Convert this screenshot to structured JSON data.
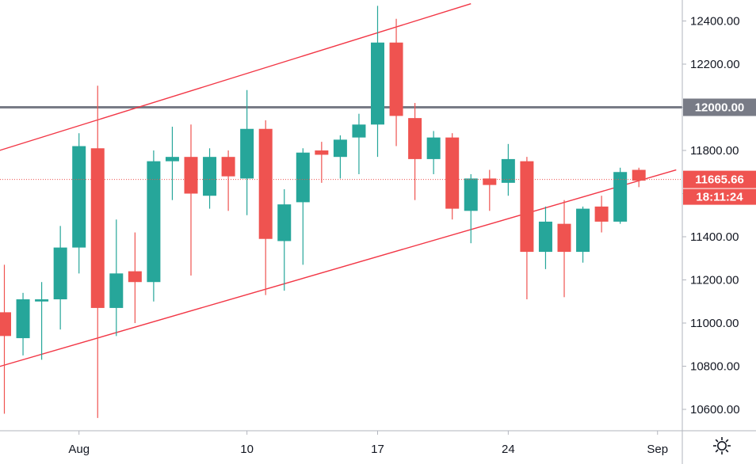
{
  "chart_data": {
    "type": "candlestick",
    "title": "",
    "xlabel": "",
    "ylabel": "",
    "ylim": [
      10500,
      12550
    ],
    "y_ticks": [
      10600,
      10800,
      11000,
      11200,
      11400,
      11600,
      11800,
      12000,
      12200,
      12400
    ],
    "y_tick_labels": [
      "10600.00",
      "10800.00",
      "11000.00",
      "11200.00",
      "11400.00",
      "11600.00",
      "11800.00",
      "12000.00",
      "12200.00",
      "12400.00"
    ],
    "x_tick_labels": [
      {
        "label": "Aug",
        "date": "2020-08-01"
      },
      {
        "label": "10",
        "date": "2020-08-10"
      },
      {
        "label": "17",
        "date": "2020-08-17"
      },
      {
        "label": "24",
        "date": "2020-08-24"
      },
      {
        "label": "Sep",
        "date": "2020-09-01"
      }
    ],
    "grid": true,
    "candles": [
      {
        "date": "2020-07-28",
        "open": 11050,
        "high": 11270,
        "low": 10580,
        "close": 10940
      },
      {
        "date": "2020-07-29",
        "open": 10930,
        "high": 11140,
        "low": 10850,
        "close": 11110
      },
      {
        "date": "2020-07-30",
        "open": 11100,
        "high": 11190,
        "low": 10830,
        "close": 11110
      },
      {
        "date": "2020-07-31",
        "open": 11110,
        "high": 11450,
        "low": 10970,
        "close": 11350
      },
      {
        "date": "2020-08-01",
        "open": 11350,
        "high": 11880,
        "low": 11230,
        "close": 11820
      },
      {
        "date": "2020-08-02",
        "open": 11810,
        "high": 12100,
        "low": 10560,
        "close": 11070
      },
      {
        "date": "2020-08-03",
        "open": 11070,
        "high": 11480,
        "low": 10940,
        "close": 11230
      },
      {
        "date": "2020-08-04",
        "open": 11240,
        "high": 11420,
        "low": 11000,
        "close": 11190
      },
      {
        "date": "2020-08-05",
        "open": 11190,
        "high": 11800,
        "low": 11100,
        "close": 11750
      },
      {
        "date": "2020-08-06",
        "open": 11750,
        "high": 11910,
        "low": 11570,
        "close": 11770
      },
      {
        "date": "2020-08-07",
        "open": 11770,
        "high": 11920,
        "low": 11220,
        "close": 11600
      },
      {
        "date": "2020-08-08",
        "open": 11590,
        "high": 11810,
        "low": 11530,
        "close": 11770
      },
      {
        "date": "2020-08-09",
        "open": 11770,
        "high": 11800,
        "low": 11520,
        "close": 11680
      },
      {
        "date": "2020-08-10",
        "open": 11670,
        "high": 12080,
        "low": 11500,
        "close": 11900
      },
      {
        "date": "2020-08-11",
        "open": 11900,
        "high": 11940,
        "low": 11130,
        "close": 11390
      },
      {
        "date": "2020-08-12",
        "open": 11380,
        "high": 11620,
        "low": 11150,
        "close": 11550
      },
      {
        "date": "2020-08-13",
        "open": 11560,
        "high": 11810,
        "low": 11270,
        "close": 11790
      },
      {
        "date": "2020-08-14",
        "open": 11800,
        "high": 11840,
        "low": 11650,
        "close": 11780
      },
      {
        "date": "2020-08-15",
        "open": 11770,
        "high": 11870,
        "low": 11670,
        "close": 11850
      },
      {
        "date": "2020-08-16",
        "open": 11860,
        "high": 11970,
        "low": 11690,
        "close": 11920
      },
      {
        "date": "2020-08-17",
        "open": 11920,
        "high": 12470,
        "low": 11770,
        "close": 12300
      },
      {
        "date": "2020-08-18",
        "open": 12300,
        "high": 12410,
        "low": 11820,
        "close": 11960
      },
      {
        "date": "2020-08-19",
        "open": 11950,
        "high": 12020,
        "low": 11570,
        "close": 11760
      },
      {
        "date": "2020-08-20",
        "open": 11760,
        "high": 11890,
        "low": 11690,
        "close": 11860
      },
      {
        "date": "2020-08-21",
        "open": 11860,
        "high": 11880,
        "low": 11480,
        "close": 11530
      },
      {
        "date": "2020-08-22",
        "open": 11520,
        "high": 11690,
        "low": 11370,
        "close": 11670
      },
      {
        "date": "2020-08-23",
        "open": 11670,
        "high": 11710,
        "low": 11520,
        "close": 11640
      },
      {
        "date": "2020-08-24",
        "open": 11650,
        "high": 11830,
        "low": 11590,
        "close": 11760
      },
      {
        "date": "2020-08-25",
        "open": 11750,
        "high": 11770,
        "low": 11110,
        "close": 11330
      },
      {
        "date": "2020-08-26",
        "open": 11330,
        "high": 11540,
        "low": 11250,
        "close": 11470
      },
      {
        "date": "2020-08-27",
        "open": 11460,
        "high": 11570,
        "low": 11120,
        "close": 11330
      },
      {
        "date": "2020-08-28",
        "open": 11330,
        "high": 11540,
        "low": 11280,
        "close": 11530
      },
      {
        "date": "2020-08-29",
        "open": 11540,
        "high": 11590,
        "low": 11420,
        "close": 11470
      },
      {
        "date": "2020-08-30",
        "open": 11470,
        "high": 11720,
        "low": 11460,
        "close": 11700
      },
      {
        "date": "2020-08-31",
        "open": 11710,
        "high": 11720,
        "low": 11630,
        "close": 11660
      }
    ],
    "horizontal_lines": [
      {
        "value": 12000,
        "label": "12000.00",
        "color": "#787b86"
      }
    ],
    "channel_lines": [
      {
        "start": {
          "date": "2020-07-27",
          "value": 11780
        },
        "end": {
          "date": "2020-08-22",
          "value": 12480
        },
        "color": "#f23645"
      },
      {
        "start": {
          "date": "2020-07-27",
          "value": 10780
        },
        "end": {
          "date": "2020-09-02",
          "value": 11710
        },
        "color": "#f23645"
      }
    ],
    "last_price": {
      "value": 11665.66,
      "label": "11665.66",
      "countdown": "18:11:24"
    },
    "colors": {
      "up": "#26a69a",
      "down": "#ef5350",
      "grid": "#f0f3fa",
      "axis_text": "#131722",
      "hline": "#787b86",
      "channel": "#f23645",
      "last_price_badge": "#ef5350",
      "hline_badge": "#787b86"
    }
  },
  "toolbar": {
    "settings_icon": "gear-icon"
  }
}
